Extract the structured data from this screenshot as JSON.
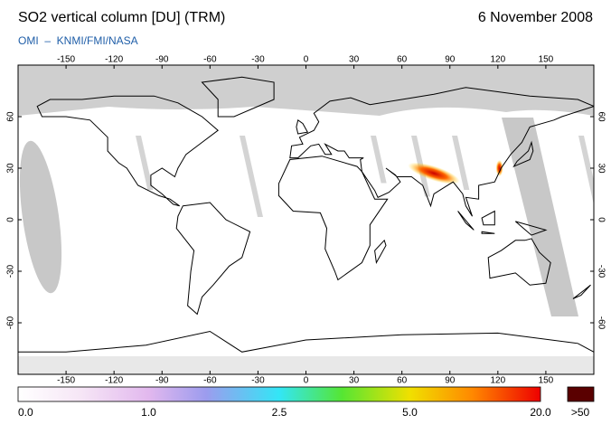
{
  "header": {
    "title": "SO2 vertical column [DU] (TRM)",
    "date": "6 November 2008",
    "subtitle": "OMI  –  KNMI/FMI/NASA"
  },
  "map": {
    "longitude_ticks": [
      -150,
      -120,
      -90,
      -60,
      -30,
      0,
      30,
      60,
      90,
      120,
      150
    ],
    "latitude_ticks": [
      60,
      30,
      0,
      -30,
      -60
    ]
  },
  "colorbar": {
    "labels": [
      "0.0",
      "1.0",
      "2.5",
      "5.0",
      "20.0"
    ],
    "over_label": ">50"
  }
}
